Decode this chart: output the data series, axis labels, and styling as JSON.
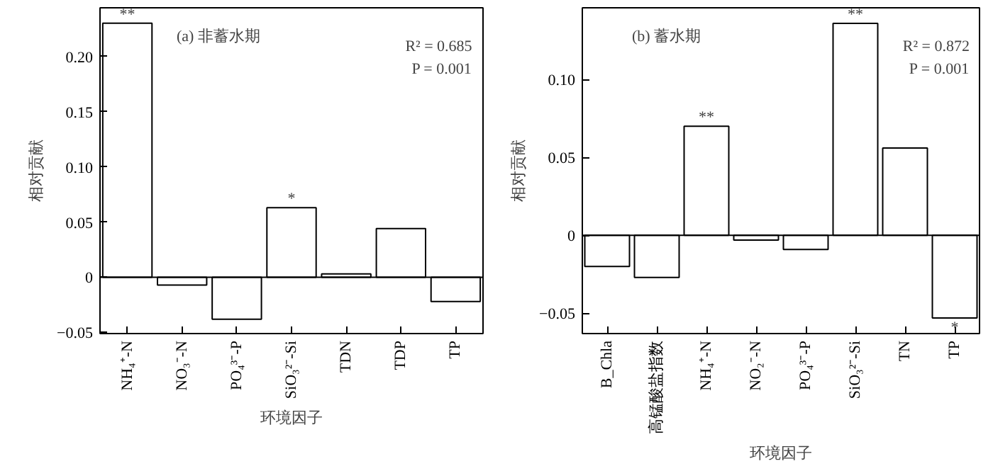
{
  "chart_data": [
    {
      "type": "bar",
      "title": "(a) 非蓄水期",
      "xlabel": "环境因子",
      "ylabel": "相对贡献",
      "categories": [
        "NH₄⁺-N",
        "NO₃⁻-N",
        "PO₄³⁻-P",
        "SiO₃²⁻-Si",
        "TDN",
        "TDP",
        "TP"
      ],
      "series": [
        {
          "color": "#ffffff",
          "values": [
            0.23,
            -0.007,
            -0.038,
            0.063,
            0.003,
            0.044,
            -0.022
          ]
        }
      ],
      "ylim": [
        -0.051,
        0.244
      ],
      "yticks": [
        {
          "value": -0.05,
          "label": "−0.05"
        },
        0,
        0.05,
        {
          "value": 0.1,
          "label": "0.10"
        },
        0.15,
        {
          "value": 0.2,
          "label": "0.20"
        }
      ],
      "annotations": [
        {
          "text": "**",
          "x": "NH₄⁺-N",
          "y": 0.23
        },
        {
          "text": "*",
          "x": "SiO₃²⁻-Si",
          "y": 0.063
        },
        "R² = 0.685",
        "P = 0.001"
      ],
      "ref_lines": [
        {
          "axis": "y",
          "value": 0
        }
      ]
    },
    {
      "type": "bar",
      "title": "(b) 蓄水期",
      "xlabel": "环境因子",
      "ylabel": "相对贡献",
      "categories": [
        "B_Chla",
        "高锰酸盐指数",
        "NH₄⁺-N",
        "NO₂⁻-N",
        "PO₄³⁻-P",
        "SiO₃²⁻-Si",
        "TN",
        "TP"
      ],
      "series": [
        {
          "color": "#ffffff",
          "values": [
            -0.02,
            -0.027,
            0.07,
            -0.003,
            -0.009,
            0.136,
            0.056,
            -0.053
          ]
        }
      ],
      "ylim": [
        -0.063,
        0.146
      ],
      "yticks": [
        {
          "value": -0.05,
          "label": "−0.05"
        },
        0,
        0.05,
        {
          "value": 0.1,
          "label": "0.10"
        }
      ],
      "annotations": [
        {
          "text": "**",
          "x": "NH₄⁺-N",
          "y": 0.07
        },
        {
          "text": "**",
          "x": "SiO₃²⁻-Si",
          "y": 0.136
        },
        {
          "text": "*",
          "x": "TP",
          "y": -0.053
        },
        "R² = 0.872",
        "P = 0.001"
      ],
      "ref_lines": [
        {
          "axis": "y",
          "value": 0
        }
      ]
    }
  ]
}
